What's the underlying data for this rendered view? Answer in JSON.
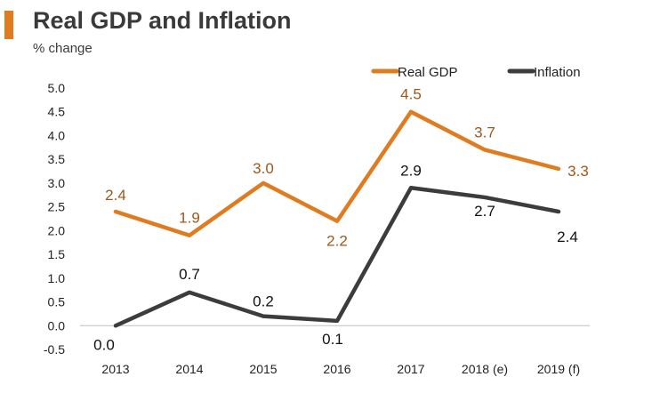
{
  "title": "Real GDP and Inflation",
  "subtitle": "% change",
  "colors": {
    "accent": "#e07b1f",
    "gdp": "#e07b1f",
    "inflation": "#3c3c3c",
    "gdp_label": "#a0561a",
    "text": "#222222",
    "axis": "#bfbfbf"
  },
  "chart_data": {
    "type": "line",
    "title": "Real GDP and Inflation",
    "ylabel": "% change",
    "xlabel": "",
    "categories": [
      "2013",
      "2014",
      "2015",
      "2016",
      "2017",
      "2018 (e)",
      "2019 (f)"
    ],
    "ylim": [
      -0.5,
      5.0
    ],
    "yticks": [
      "5.0",
      "4.5",
      "4.0",
      "3.5",
      "3.0",
      "2.5",
      "2.0",
      "1.5",
      "1.0",
      "0.5",
      "0.0",
      "-0.5"
    ],
    "grid": false,
    "legend_position": "top-right",
    "series": [
      {
        "name": "Real GDP",
        "values": [
          2.4,
          1.9,
          3.0,
          2.2,
          4.5,
          3.7,
          3.3
        ],
        "labels": [
          "2.4",
          "1.9",
          "3.0",
          "2.2",
          "4.5",
          "3.7",
          "3.3"
        ]
      },
      {
        "name": "Inflation",
        "values": [
          0.0,
          0.7,
          0.2,
          0.1,
          2.9,
          2.7,
          2.4
        ],
        "labels": [
          "0.0",
          "0.7",
          "0.2",
          "0.1",
          "2.9",
          "2.7",
          "2.4"
        ]
      }
    ]
  }
}
